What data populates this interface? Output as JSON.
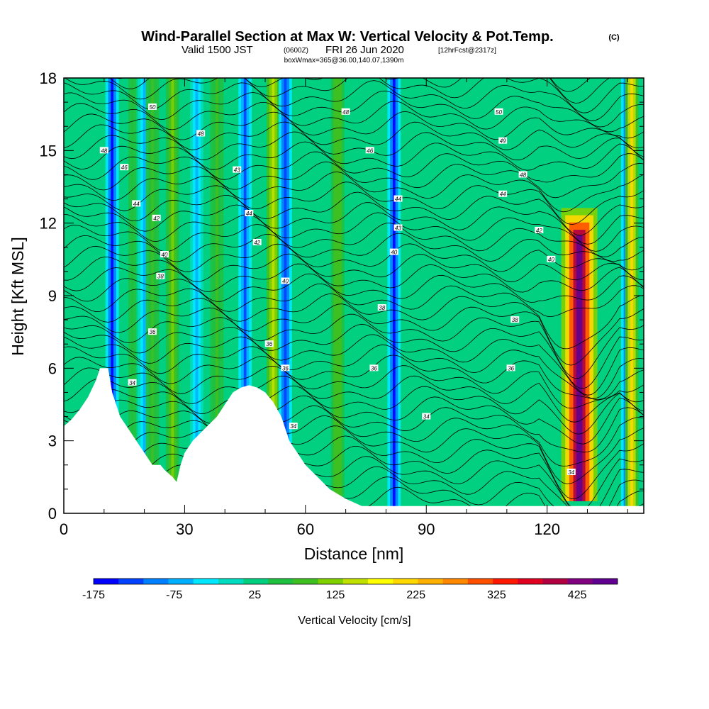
{
  "title": {
    "main": "Wind-Parallel Section at Max W: Vertical Velocity & Pot.Temp.",
    "copyright": "(C)",
    "valid_prefix": "Valid 1500 JST",
    "valid_utc": "(0600Z)",
    "valid_date": "FRI 26 Jun 2020",
    "forecast": "[12hrFcst@2317z]",
    "box": "boxWmax=365@36.00,140.07,1390m"
  },
  "chart_data": {
    "type": "heatmap",
    "xlabel": "Distance [nm]",
    "ylabel": "Height [Kft MSL]",
    "xlim": [
      0,
      144
    ],
    "ylim": [
      0,
      18
    ],
    "x_ticks": [
      0,
      30,
      60,
      90,
      120
    ],
    "y_ticks": [
      0,
      3,
      6,
      9,
      12,
      15,
      18
    ],
    "colorbar": {
      "title": "Vertical Velocity [cm/s]",
      "tick_labels": [
        "-175",
        "-75",
        "25",
        "125",
        "225",
        "325",
        "425"
      ],
      "range": [
        -175,
        475
      ],
      "colors": [
        "#0000ff",
        "#0040ff",
        "#0080ff",
        "#00b0ff",
        "#00e8ff",
        "#00dcc0",
        "#00d080",
        "#20c040",
        "#40c020",
        "#80d000",
        "#c0e000",
        "#ffff00",
        "#ffd800",
        "#ffb000",
        "#ff8800",
        "#ff5000",
        "#ff1800",
        "#e00020",
        "#b00040",
        "#800080",
        "#600090"
      ]
    },
    "terrain_kft": [
      [
        0,
        3.6
      ],
      [
        2,
        3.9
      ],
      [
        4,
        4.3
      ],
      [
        6,
        4.8
      ],
      [
        8,
        5.5
      ],
      [
        9,
        6.0
      ],
      [
        11,
        6.0
      ],
      [
        12,
        5.0
      ],
      [
        13,
        4.5
      ],
      [
        14,
        4.0
      ],
      [
        16,
        3.5
      ],
      [
        18,
        3.0
      ],
      [
        20,
        2.5
      ],
      [
        22,
        2.0
      ],
      [
        24,
        2.0
      ],
      [
        25,
        1.8
      ],
      [
        27,
        1.5
      ],
      [
        28,
        1.3
      ],
      [
        29,
        2.0
      ],
      [
        30,
        2.5
      ],
      [
        32,
        3.0
      ],
      [
        35,
        3.5
      ],
      [
        38,
        4.0
      ],
      [
        40,
        4.5
      ],
      [
        42,
        5.0
      ],
      [
        44,
        5.2
      ],
      [
        46,
        5.3
      ],
      [
        48,
        5.2
      ],
      [
        50,
        5.0
      ],
      [
        52,
        4.6
      ],
      [
        54,
        4.0
      ],
      [
        56,
        3.0
      ],
      [
        58,
        2.5
      ],
      [
        60,
        2.0
      ],
      [
        63,
        1.5
      ],
      [
        66,
        1.0
      ],
      [
        70,
        0.6
      ],
      [
        74,
        0.3
      ],
      [
        80,
        0.3
      ],
      [
        100,
        0.3
      ],
      [
        120,
        0.3
      ],
      [
        144,
        0.3
      ]
    ],
    "updrafts_cm_s": [
      {
        "x": 12,
        "value": -150
      },
      {
        "x": 17,
        "value": 60
      },
      {
        "x": 20,
        "value": -60
      },
      {
        "x": 22,
        "value": 80
      },
      {
        "x": 27,
        "value": 120
      },
      {
        "x": 33,
        "value": -80
      },
      {
        "x": 38,
        "value": 90
      },
      {
        "x": 45,
        "value": -120
      },
      {
        "x": 52,
        "value": 160
      },
      {
        "x": 55,
        "value": -140
      },
      {
        "x": 68,
        "value": 100
      },
      {
        "x": 82,
        "value": -150
      },
      {
        "x": 128,
        "value": 450
      },
      {
        "x": 140,
        "value": -140
      },
      {
        "x": 141,
        "value": 200
      }
    ],
    "contour_labels": [
      {
        "x": 10,
        "y": 15.0,
        "text": "48"
      },
      {
        "x": 22,
        "y": 16.8,
        "text": "50"
      },
      {
        "x": 34,
        "y": 15.7,
        "text": "48"
      },
      {
        "x": 70,
        "y": 16.6,
        "text": "48"
      },
      {
        "x": 108,
        "y": 16.6,
        "text": "50"
      },
      {
        "x": 15,
        "y": 14.3,
        "text": "46"
      },
      {
        "x": 76,
        "y": 15.0,
        "text": "46"
      },
      {
        "x": 109,
        "y": 15.4,
        "text": "49"
      },
      {
        "x": 43,
        "y": 14.2,
        "text": "43"
      },
      {
        "x": 114,
        "y": 14.0,
        "text": "48"
      },
      {
        "x": 18,
        "y": 12.8,
        "text": "44"
      },
      {
        "x": 46,
        "y": 12.4,
        "text": "44"
      },
      {
        "x": 83,
        "y": 13.0,
        "text": "44"
      },
      {
        "x": 109,
        "y": 13.2,
        "text": "44"
      },
      {
        "x": 23,
        "y": 12.2,
        "text": "42"
      },
      {
        "x": 48,
        "y": 11.2,
        "text": "42"
      },
      {
        "x": 83,
        "y": 11.8,
        "text": "43"
      },
      {
        "x": 118,
        "y": 11.7,
        "text": "42"
      },
      {
        "x": 25,
        "y": 10.7,
        "text": "40"
      },
      {
        "x": 82,
        "y": 10.8,
        "text": "40"
      },
      {
        "x": 121,
        "y": 10.5,
        "text": "40"
      },
      {
        "x": 24,
        "y": 9.8,
        "text": "38"
      },
      {
        "x": 55,
        "y": 9.6,
        "text": "40"
      },
      {
        "x": 79,
        "y": 8.5,
        "text": "38"
      },
      {
        "x": 112,
        "y": 8.0,
        "text": "38"
      },
      {
        "x": 22,
        "y": 7.5,
        "text": "36"
      },
      {
        "x": 51,
        "y": 7.0,
        "text": "36"
      },
      {
        "x": 77,
        "y": 6.0,
        "text": "36"
      },
      {
        "x": 111,
        "y": 6.0,
        "text": "36"
      },
      {
        "x": 17,
        "y": 5.4,
        "text": "34"
      },
      {
        "x": 55,
        "y": 6.0,
        "text": "36"
      },
      {
        "x": 57,
        "y": 3.6,
        "text": "34"
      },
      {
        "x": 90,
        "y": 4.0,
        "text": "34"
      },
      {
        "x": 126,
        "y": 1.7,
        "text": "34"
      }
    ]
  }
}
